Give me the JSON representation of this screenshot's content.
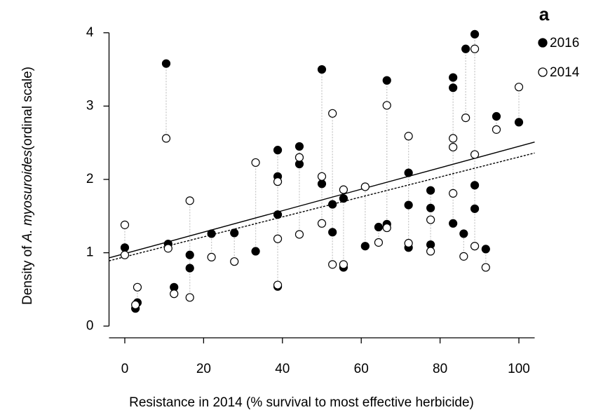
{
  "chart_data": {
    "type": "scatter",
    "panel_label": "a",
    "x_label": "Resistance in 2014 (% survival to most effective herbicide)",
    "y_label_parts": [
      "Density of ",
      "A. myosuroides",
      "(ordinal scale)"
    ],
    "xlim": [
      -4,
      104
    ],
    "ylim": [
      -0.16,
      4.16
    ],
    "xticks": [
      0,
      20,
      40,
      60,
      80,
      100
    ],
    "yticks": [
      0,
      1,
      2,
      3,
      4
    ],
    "legend": "top-right",
    "series": [
      {
        "name": "2016",
        "marker": "filled",
        "color": "#000000",
        "x": [
          0,
          2.7,
          3.2,
          10.5,
          11,
          12.5,
          16.5,
          16.5,
          22,
          27.8,
          33.2,
          38.8,
          38.8,
          38.8,
          38.8,
          44.3,
          44.3,
          50,
          50,
          52.7,
          52.7,
          55.5,
          55.5,
          61,
          64.4,
          66.5,
          66.5,
          72,
          72,
          72,
          77.6,
          77.6,
          77.6,
          83.3,
          83.3,
          83.3,
          86,
          86.5,
          88.8,
          88.8,
          88.8,
          91.6,
          94.3,
          100
        ],
        "values": [
          1.07,
          0.24,
          0.32,
          3.58,
          1.12,
          0.53,
          0.97,
          0.79,
          1.26,
          1.27,
          1.02,
          2.4,
          2.04,
          1.52,
          0.54,
          2.45,
          2.21,
          3.5,
          1.94,
          1.66,
          1.28,
          1.74,
          0.8,
          1.09,
          1.35,
          1.39,
          3.35,
          2.09,
          1.65,
          1.07,
          1.85,
          1.61,
          1.11,
          3.39,
          3.25,
          1.4,
          1.26,
          3.78,
          3.98,
          1.92,
          1.6,
          1.05,
          2.86,
          2.78
        ]
      },
      {
        "name": "2014",
        "marker": "open",
        "color": "#000000",
        "x": [
          0,
          0,
          2.7,
          3.2,
          10.5,
          11,
          12.5,
          16.5,
          16.5,
          22,
          27.8,
          33.2,
          38.8,
          38.8,
          38.8,
          44.3,
          44.3,
          50,
          50,
          52.7,
          52.7,
          55.5,
          55.5,
          61,
          64.4,
          66.5,
          66.5,
          72,
          72,
          77.6,
          77.6,
          83.3,
          83.3,
          83.3,
          86,
          86.5,
          88.8,
          88.8,
          88.8,
          91.6,
          94.3,
          100
        ],
        "values": [
          1.38,
          0.97,
          0.29,
          0.53,
          2.56,
          1.06,
          0.44,
          1.71,
          0.39,
          0.94,
          0.88,
          2.23,
          1.97,
          1.19,
          0.56,
          2.3,
          1.25,
          2.04,
          1.4,
          2.9,
          0.84,
          1.86,
          0.84,
          1.9,
          1.14,
          1.34,
          3.01,
          2.59,
          1.13,
          1.45,
          1.02,
          2.56,
          2.44,
          1.81,
          0.95,
          2.84,
          3.78,
          2.34,
          1.09,
          0.8,
          2.68,
          3.26
        ]
      }
    ],
    "fit_lines": [
      {
        "style": "solid",
        "x": [
          -4,
          104
        ],
        "y": [
          0.93,
          2.51
        ]
      },
      {
        "style": "dashed",
        "x": [
          -4,
          104
        ],
        "y": [
          0.89,
          2.36
        ]
      }
    ]
  }
}
